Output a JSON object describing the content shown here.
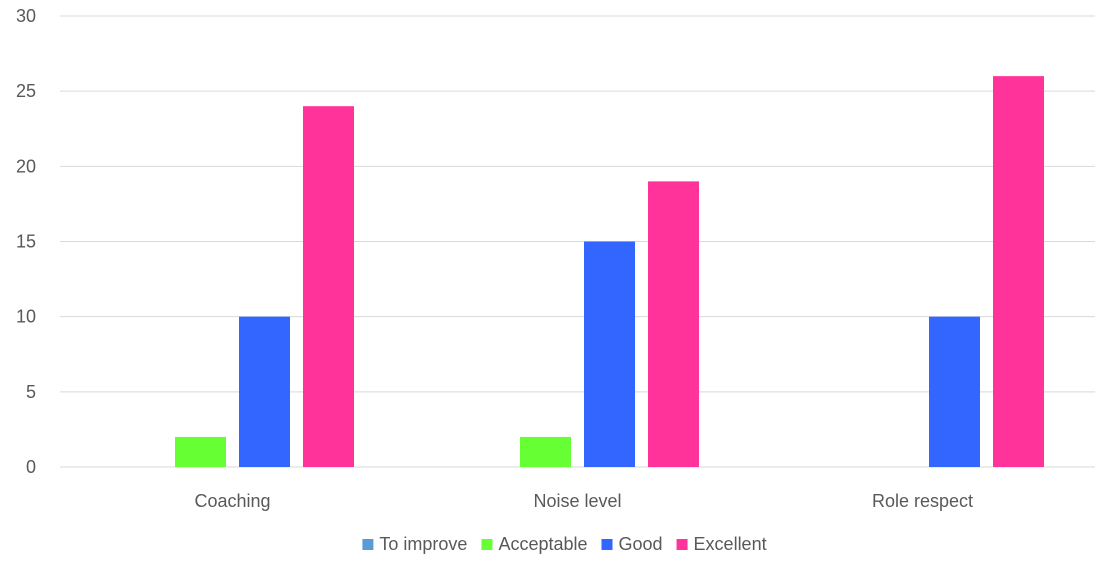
{
  "chart_data": {
    "type": "bar",
    "title": "",
    "xlabel": "",
    "ylabel": "",
    "categories": [
      "Coaching",
      "Noise level",
      "Role respect"
    ],
    "ylim": [
      0,
      30
    ],
    "yticks": [
      0,
      5,
      10,
      15,
      20,
      25,
      30
    ],
    "grid": true,
    "legend_position": "bottom",
    "series": [
      {
        "name": "To improve",
        "color": "#5b9bd5",
        "values": [
          0,
          0,
          0
        ]
      },
      {
        "name": "Acceptable",
        "color": "#66ff33",
        "values": [
          2,
          2,
          0
        ]
      },
      {
        "name": "Good",
        "color": "#3366ff",
        "values": [
          10,
          15,
          10
        ]
      },
      {
        "name": "Excellent",
        "color": "#ff3399",
        "values": [
          24,
          19,
          26
        ]
      }
    ]
  }
}
